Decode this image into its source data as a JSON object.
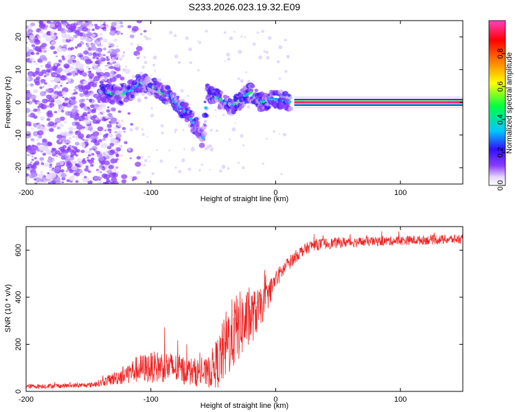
{
  "title": "S233.2026.023.19.32.E09",
  "chart_data": [
    {
      "type": "heatmap",
      "name": "spectrogram",
      "xlabel": "Height of straight line (km)",
      "ylabel": "Frequency (Hz)",
      "xlim": [
        -200,
        150
      ],
      "ylim": [
        -25,
        25
      ],
      "xticks": [
        -200,
        -100,
        0,
        100
      ],
      "xtick_labels": [
        "-200",
        "-100",
        "0",
        "100"
      ],
      "yticks": [
        -20,
        -10,
        0,
        10,
        20
      ],
      "ytick_labels": [
        "-20",
        "-10",
        "0",
        "10",
        "20"
      ],
      "colorbar": {
        "label": "Normalized spectral amplitude",
        "range": [
          0,
          1
        ],
        "ticks": [
          0.0,
          0.2,
          0.4,
          0.6,
          0.8
        ],
        "tick_labels": [
          "0.0",
          "0.2",
          "0.4",
          "0.6",
          "0.8"
        ],
        "colormap": [
          "#ffffff",
          "#e6d8ff",
          "#8a3cff",
          "#3010ff",
          "#00c8ff",
          "#00ff40",
          "#ffff00",
          "#ff8000",
          "#ff0000",
          "#ff40c0"
        ]
      },
      "ridge": {
        "x": [
          -135,
          -125,
          -115,
          -108,
          -100,
          -92,
          -85,
          -78,
          -72,
          -66,
          -62,
          -58,
          -55,
          -50,
          -45,
          -40,
          -35,
          -30,
          -25,
          -20,
          -15,
          -10,
          -5,
          0,
          5,
          10,
          15,
          150
        ],
        "y": [
          3,
          2,
          4,
          6,
          5,
          3,
          2,
          -1,
          -3,
          -6,
          -9,
          -11,
          3,
          2,
          1,
          0,
          -1,
          0,
          2,
          3,
          1,
          0,
          1,
          1,
          0.5,
          0.2,
          0,
          0
        ]
      }
    },
    {
      "type": "line",
      "name": "snr",
      "xlabel": "Height of straight line (km)",
      "ylabel": "SNR (10 * v/v)",
      "xlim": [
        -200,
        150
      ],
      "ylim": [
        0,
        700
      ],
      "xticks": [
        -200,
        -100,
        0,
        100
      ],
      "xtick_labels": [
        "-200",
        "-100",
        "0",
        "100"
      ],
      "yticks": [
        0,
        200,
        400,
        600
      ],
      "ytick_labels": [
        "0",
        "200",
        "400",
        "600"
      ],
      "color": "#ee2222",
      "envelope": {
        "x": [
          -200,
          -150,
          -140,
          -125,
          -110,
          -90,
          -70,
          -55,
          -45,
          -38,
          -30,
          -20,
          -10,
          0,
          10,
          20,
          30,
          50,
          80,
          110,
          150
        ],
        "mean": [
          20,
          25,
          35,
          60,
          90,
          100,
          80,
          70,
          120,
          200,
          260,
          300,
          360,
          470,
          540,
          590,
          620,
          630,
          635,
          640,
          645
        ],
        "noise": [
          10,
          10,
          15,
          35,
          60,
          70,
          60,
          60,
          120,
          160,
          150,
          120,
          70,
          40,
          30,
          25,
          25,
          22,
          20,
          20,
          20
        ]
      }
    }
  ]
}
